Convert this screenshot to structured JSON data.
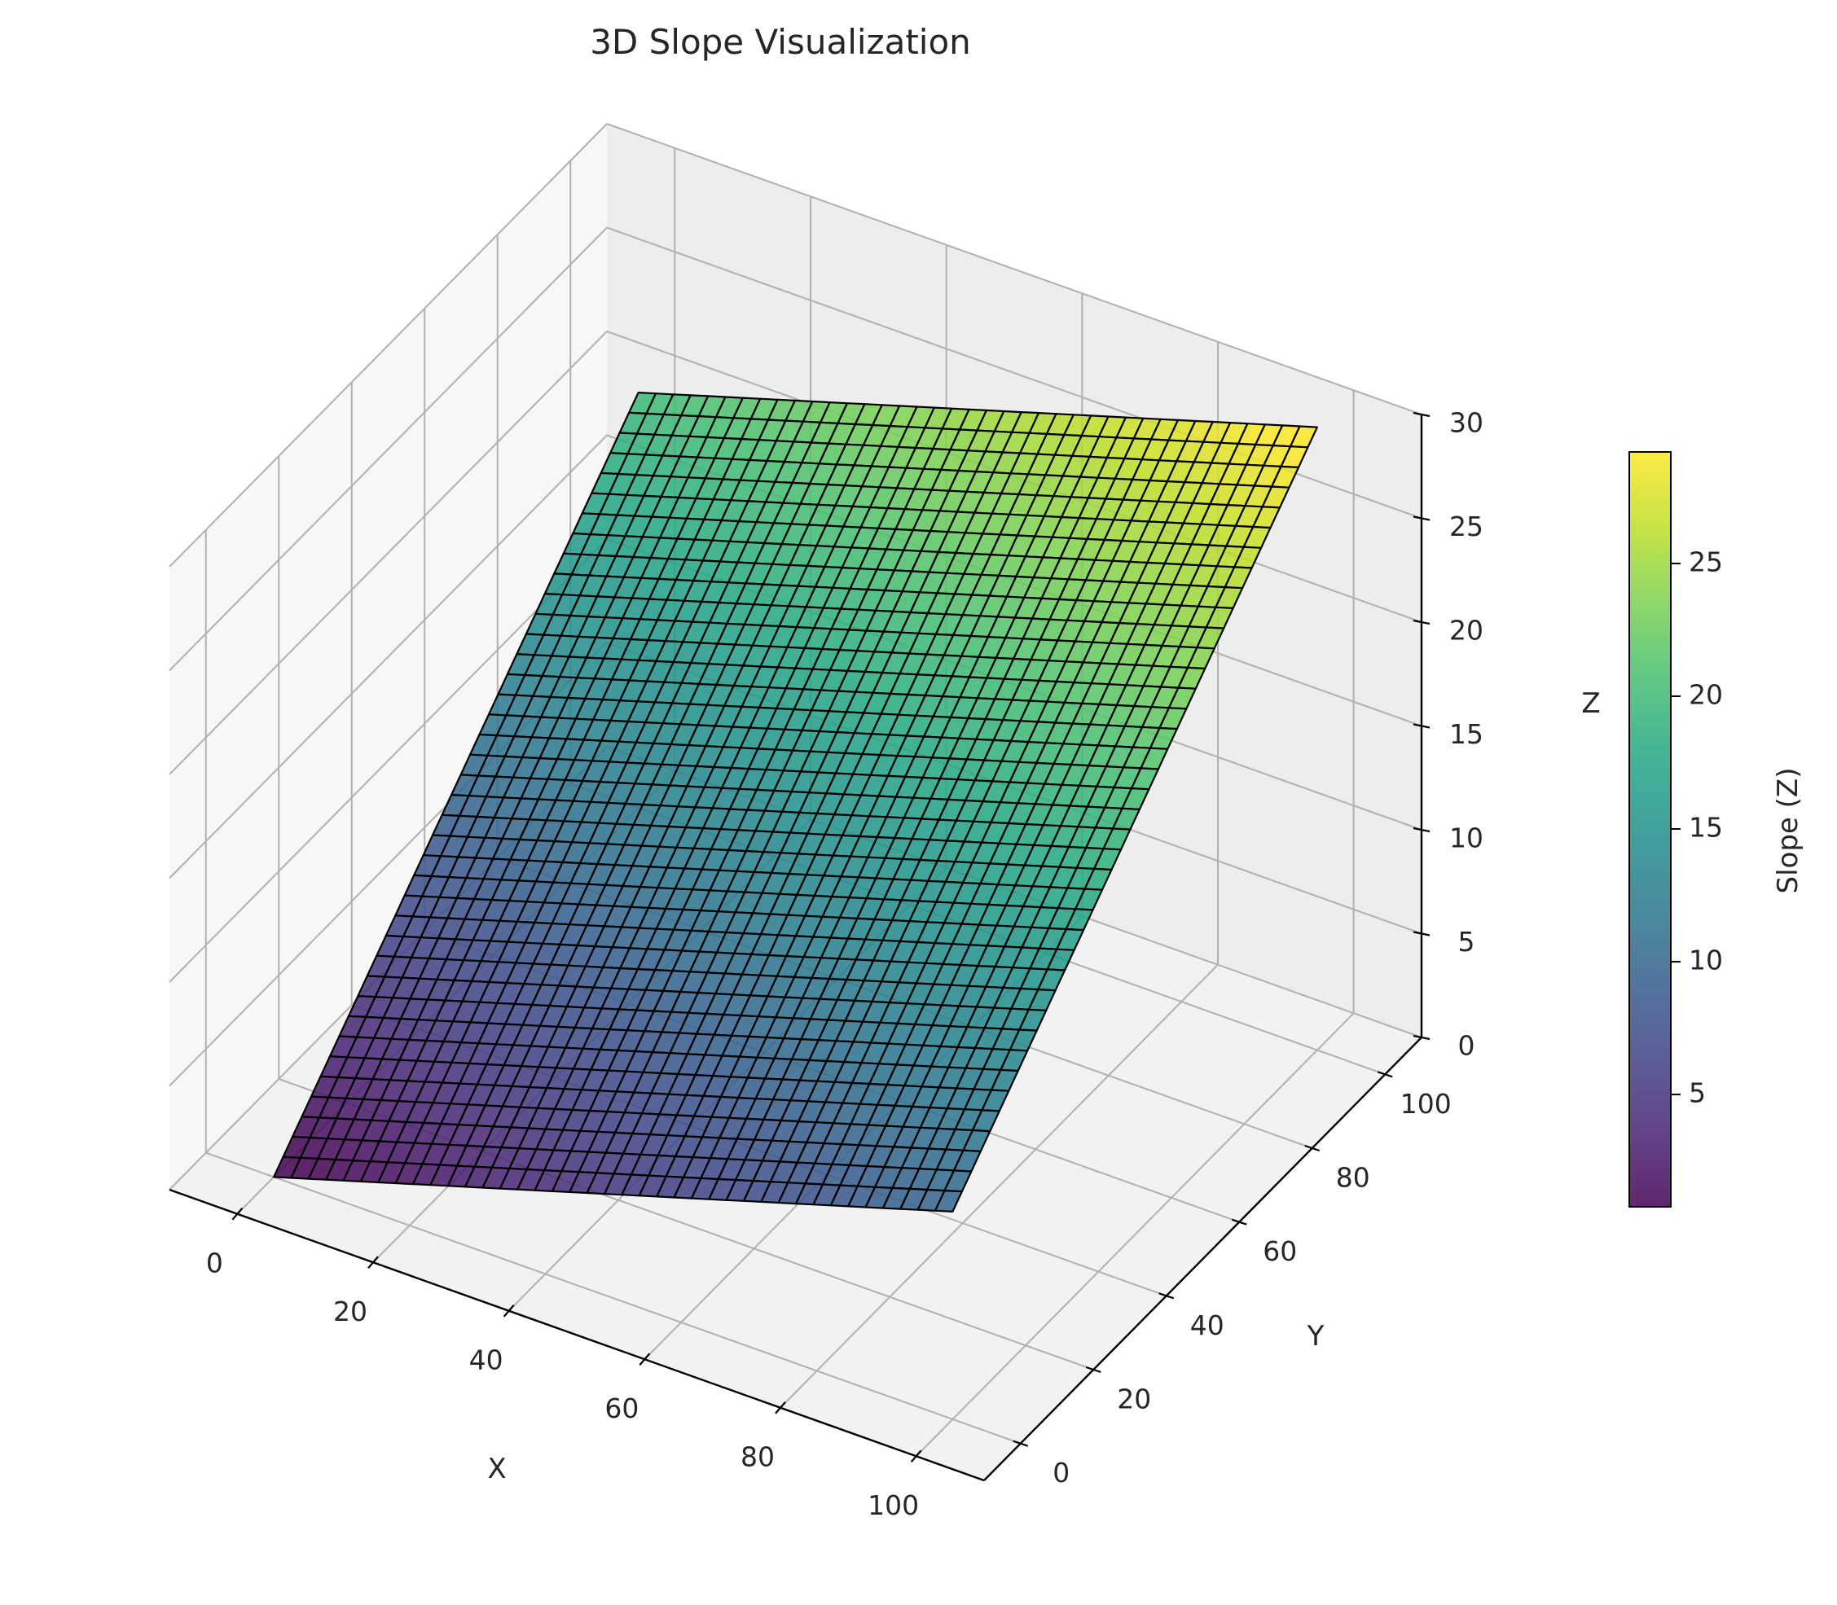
{
  "chart_data": {
    "type": "surface",
    "title": "3D Slope Visualization",
    "xlabel": "X",
    "ylabel": "Y",
    "zlabel": "Z",
    "xlim": [
      -10,
      110
    ],
    "ylim": [
      -10,
      110
    ],
    "zlim": [
      0,
      30
    ],
    "x_ticks": [
      0,
      20,
      40,
      60,
      80,
      100
    ],
    "y_ticks": [
      0,
      20,
      40,
      60,
      80,
      100
    ],
    "z_ticks": [
      0,
      5,
      10,
      15,
      20,
      25,
      30
    ],
    "surface": {
      "function": "z = 0.1*x + 0.2*y",
      "x_range": [
        0,
        100
      ],
      "y_range": [
        0,
        100
      ],
      "grid_points": 40,
      "z_min": 0,
      "z_max": 30,
      "edgecolor": "#000000",
      "colormap": "viridis"
    },
    "colorbar": {
      "label": "Slope (Z)",
      "ticks": [
        5,
        10,
        15,
        20,
        25
      ],
      "range": [
        0.77,
        29.2
      ]
    },
    "grid": true
  }
}
